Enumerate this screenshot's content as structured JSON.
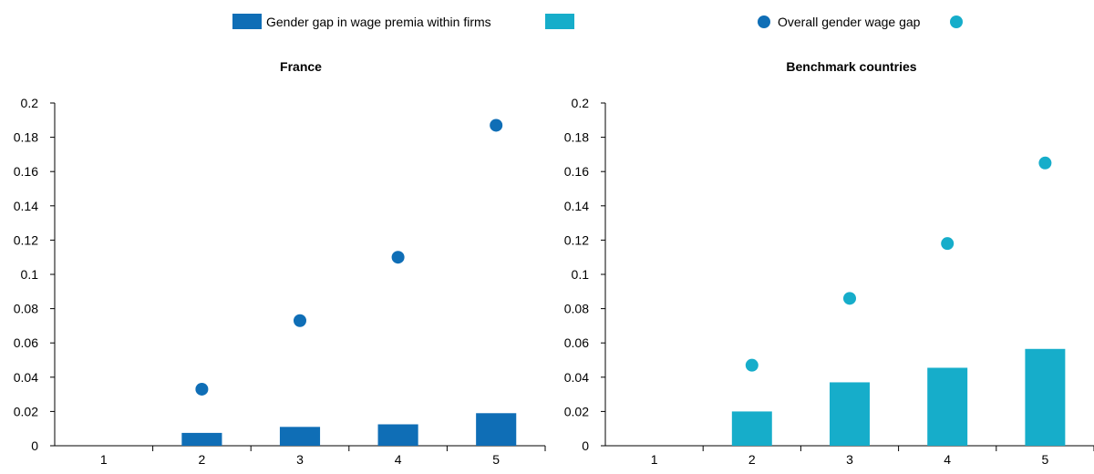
{
  "legend": {
    "bar_label": "Gender gap in wage premia within firms",
    "dot_label": "Overall gender wage gap"
  },
  "colors": {
    "france": "#0f6eb6",
    "benchmark": "#16adca",
    "axis": "#000000"
  },
  "chart_data": [
    {
      "type": "bar",
      "title": "France",
      "categories": [
        "1",
        "2",
        "3",
        "4",
        "5"
      ],
      "series": [
        {
          "name": "Gender gap in wage premia within firms",
          "type": "bar",
          "values": [
            0,
            0.0075,
            0.011,
            0.0125,
            0.019
          ]
        },
        {
          "name": "Overall gender wage gap",
          "type": "scatter",
          "values": [
            null,
            0.033,
            0.073,
            0.11,
            0.187
          ]
        }
      ],
      "ylim": [
        0,
        0.2
      ],
      "yticks": [
        "0",
        "0.02",
        "0.04",
        "0.06",
        "0.08",
        "0.1",
        "0.12",
        "0.14",
        "0.16",
        "0.18",
        "0.2"
      ],
      "grid": false,
      "color": "#0f6eb6"
    },
    {
      "type": "bar",
      "title": "Benchmark countries",
      "categories": [
        "1",
        "2",
        "3",
        "4",
        "5"
      ],
      "series": [
        {
          "name": "Gender gap in wage premia within firms",
          "type": "bar",
          "values": [
            0,
            0.02,
            0.037,
            0.0455,
            0.0565
          ]
        },
        {
          "name": "Overall gender wage gap",
          "type": "scatter",
          "values": [
            null,
            0.047,
            0.086,
            0.118,
            0.165
          ]
        }
      ],
      "ylim": [
        0,
        0.2
      ],
      "yticks": [
        "0",
        "0.02",
        "0.04",
        "0.06",
        "0.08",
        "0.1",
        "0.12",
        "0.14",
        "0.16",
        "0.18",
        "0.2"
      ],
      "grid": false,
      "color": "#16adca"
    }
  ]
}
